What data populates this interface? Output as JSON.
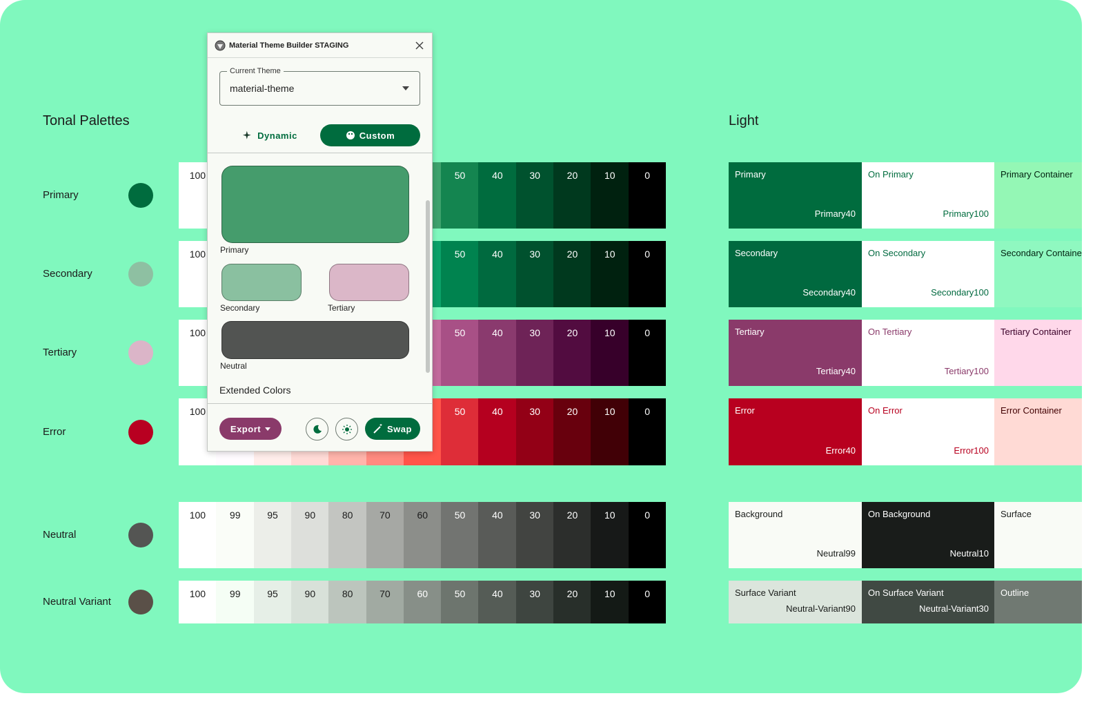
{
  "plugin": {
    "title": "Material Theme Builder STAGING",
    "current_theme_label": "Current Theme",
    "current_theme": "material-theme",
    "tabs": [
      "Dynamic",
      "Custom"
    ],
    "swatches": [
      {
        "label": "Primary",
        "color": "#459c6c"
      },
      {
        "label": "Secondary",
        "color": "#8ac0a0"
      },
      {
        "label": "Tertiary",
        "color": "#dbb7c8"
      },
      {
        "label": "Neutral",
        "color": "#525452"
      }
    ],
    "extended_colors": "Extended Colors",
    "export": "Export",
    "swap": "Swap"
  },
  "tonal_palettes": {
    "title": "Tonal Palettes",
    "tones": [
      100,
      99,
      95,
      90,
      80,
      70,
      60,
      50,
      40,
      30,
      20,
      10,
      0
    ],
    "palettes": [
      {
        "name": "Primary",
        "color": "#006c3e",
        "tones": [
          "#ffffff",
          "#f5fff5",
          "#c9ffd9",
          "#93f7b7",
          "#77daa0",
          "#5bbe86",
          "#3ea26d",
          "#148550",
          "#006c3e",
          "#00522e",
          "#00391e",
          "#00210f",
          "#000000"
        ]
      },
      {
        "name": "Secondary",
        "color": "#8ec0a2",
        "tones": [
          "#ffffff",
          "#f5fff5",
          "#c1ffd9",
          "#7ff8b8",
          "#5fdb9d",
          "#3cbe82",
          "#0ba169",
          "#00834f",
          "#006a3f",
          "#00512e",
          "#00391e",
          "#00210f",
          "#000000"
        ]
      },
      {
        "name": "Tertiary",
        "color": "#dbb5c8",
        "tones": [
          "#ffffff",
          "#fffbff",
          "#ffecf3",
          "#ffd8ea",
          "#f6b2d6",
          "#d98eba",
          "#c26a9c",
          "#a85086",
          "#8a3a6e",
          "#6e2357",
          "#520c40",
          "#37002a",
          "#000000"
        ]
      },
      {
        "name": "Error",
        "color": "#b80021",
        "tones": [
          "#ffffff",
          "#fffbff",
          "#ffedea",
          "#ffdad6",
          "#ffb4ab",
          "#ff8a80",
          "#ff5449",
          "#de2d38",
          "#b5001f",
          "#930016",
          "#68000d",
          "#410006",
          "#000000"
        ]
      },
      {
        "name": "Neutral",
        "color": "#545553",
        "tones": [
          "#ffffff",
          "#fafdf8",
          "#eceee9",
          "#dddfdb",
          "#c3c5c1",
          "#a6a8a4",
          "#8c8e8a",
          "#727471",
          "#595b58",
          "#424441",
          "#2c2e2c",
          "#171918",
          "#000000"
        ]
      },
      {
        "name": "Neutral Variant",
        "color": "#5a5048",
        "tones": [
          "#ffffff",
          "#f5fef5",
          "#e6efe7",
          "#d8e1d9",
          "#bcc5bd",
          "#a1aaa2",
          "#878f88",
          "#6d756e",
          "#555c56",
          "#3e4540",
          "#282f2a",
          "#141a16",
          "#000000"
        ]
      }
    ]
  },
  "light": {
    "title": "Light",
    "rows": [
      [
        {
          "name": "Primary",
          "tone": "Primary40",
          "color": "#006c3e",
          "text_color": "#ffffff"
        },
        {
          "name": "On Primary",
          "tone": "Primary100",
          "color": "#ffffff",
          "text_color": "#006c3e"
        },
        {
          "name": "Primary Container",
          "color": "#94f7b5",
          "text_color": "#00210f"
        }
      ],
      [
        {
          "name": "Secondary",
          "tone": "Secondary40",
          "color": "#00693f",
          "text_color": "#ffffff"
        },
        {
          "name": "On Secondary",
          "tone": "Secondary100",
          "color": "#ffffff",
          "text_color": "#00693f"
        },
        {
          "name": "Secondary Container",
          "color": "#8ff8c0",
          "text_color": "#002110"
        }
      ],
      [
        {
          "name": "Tertiary",
          "tone": "Tertiary40",
          "color": "#8a3a6a",
          "text_color": "#ffffff"
        },
        {
          "name": "On Tertiary",
          "tone": "Tertiary100",
          "color": "#ffffff",
          "text_color": "#8a3a6a"
        },
        {
          "name": "Tertiary Container",
          "color": "#ffd8ea",
          "text_color": "#3a0028"
        }
      ],
      [
        {
          "name": "Error",
          "tone": "Error40",
          "color": "#b8001f",
          "text_color": "#ffffff"
        },
        {
          "name": "On Error",
          "tone": "Error100",
          "color": "#ffffff",
          "text_color": "#b8001f"
        },
        {
          "name": "Error Container",
          "color": "#ffdad5",
          "text_color": "#410002"
        }
      ],
      [
        {
          "name": "Background",
          "tone": "Neutral99",
          "color": "#f9fbf6",
          "text_color": "#191c1a"
        },
        {
          "name": "On Background",
          "tone": "Neutral10",
          "color": "#191c1a",
          "text_color": "#ffffff"
        },
        {
          "name": "Surface",
          "color": "#f9fbf6",
          "text_color": "#191c1a"
        }
      ],
      [
        {
          "name": "Surface Variant",
          "tone": "Neutral-Variant90",
          "color": "#dbe5dc",
          "text_color": "#191c1a"
        },
        {
          "name": "On Surface Variant",
          "tone": "Neutral-Variant30",
          "color": "#404943",
          "text_color": "#ffffff"
        },
        {
          "name": "Outline",
          "color": "#707972",
          "text_color": "#ffffff"
        }
      ]
    ]
  }
}
